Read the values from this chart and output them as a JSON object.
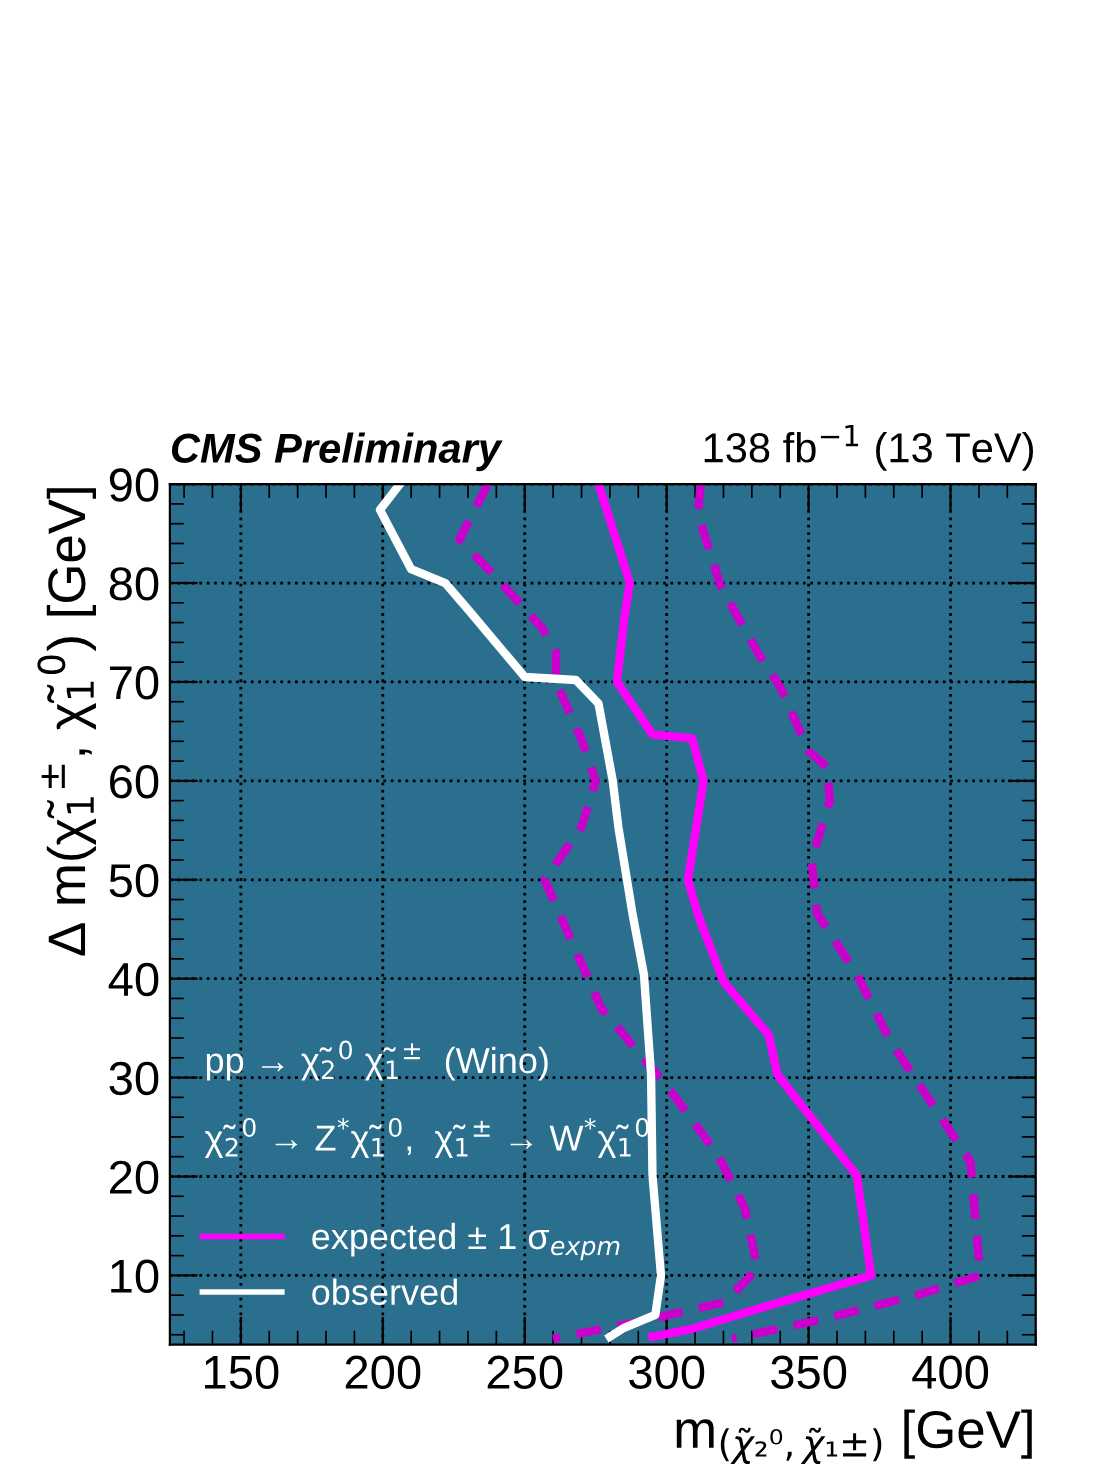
{
  "chart_data": {
    "type": "line",
    "title": "CMS Preliminary",
    "subtitle": "138 fb$^{−1}$ (13 TeV)",
    "xlabel": "m$_{(χ̃₂⁰,χ̃₁±)}$ [GeV]",
    "ylabel": "Δ m(χ̃$_{1}$$^{±}$, χ̃$_{1}$$^{0}$) [GeV]",
    "annotations": [
      "pp → χ̃$_{2}$$^{0}$ χ̃$_{1}$$^{±}$  (Wino)",
      "χ̃$_{2}$$^{0}$ → Z$^{*}$χ̃$_{1}$$^{0}$,  χ̃$_{1}$$^{±}$ → W$^{*}$χ̃$_{1}$$^{0}$"
    ],
    "xlim": [
      125,
      430
    ],
    "xticks": [
      150,
      200,
      250,
      300,
      350,
      400
    ],
    "ylim": [
      3,
      90
    ],
    "yticks": [
      10,
      20,
      30,
      40,
      50,
      60,
      70,
      80,
      90
    ],
    "grid": true,
    "legend": "bottom left",
    "series": [
      {
        "name": "expected ± 1 σ$_{expm}$",
        "color": "#ff00ff",
        "line_style": "solid",
        "x": [
          276,
          283,
          287,
          285,
          282.5,
          295,
          309,
          313,
          307.5,
          311,
          320,
          336,
          339,
          367,
          372,
          355.5,
          332,
          309,
          295
        ],
        "values": [
          90,
          83.7,
          80,
          76.3,
          70,
          64.7,
          64.3,
          60,
          50,
          46.5,
          39.7,
          34.3,
          30.3,
          20.1,
          10,
          8.6,
          6.6,
          4.6,
          3.8
        ]
      },
      {
        "color": "#cc00cc",
        "line_style": "dashed",
        "x": [
          237,
          227,
          238.5,
          256,
          261,
          261,
          270,
          275,
          270,
          257,
          266.5,
          277,
          300.5,
          318,
          327.5,
          332,
          320.5,
          290,
          260
        ],
        "values": [
          90,
          84.4,
          81,
          75.5,
          73,
          70,
          64.2,
          60,
          55.3,
          50,
          43.8,
          37,
          29,
          22.2,
          16.8,
          10.7,
          7.3,
          5.3,
          3.6
        ]
      },
      {
        "color": "#cc00cc",
        "line_style": "dashed",
        "x": [
          312,
          311,
          319,
          332,
          340,
          350,
          356.5,
          357.5,
          351,
          353,
          367,
          379,
          407,
          410.5,
          388,
          355.5,
          323
        ],
        "values": [
          90,
          87,
          79.7,
          73,
          69.5,
          63,
          61.4,
          58,
          52,
          46.6,
          40.4,
          33.6,
          21.5,
          10,
          8,
          5.6,
          3.6
        ]
      },
      {
        "name": "observed",
        "color": "#ffffff",
        "line_style": "solid",
        "x": [
          206,
          199,
          210,
          222,
          231,
          250,
          268,
          276,
          281,
          283,
          288,
          292,
          294.5,
          295,
          298,
          296,
          285,
          280
        ],
        "values": [
          90,
          87.4,
          81.4,
          80,
          77,
          70.5,
          70.2,
          67.8,
          60,
          55.3,
          46.5,
          40.4,
          30.3,
          20.1,
          10,
          6,
          4.7,
          3.8
        ]
      }
    ]
  }
}
